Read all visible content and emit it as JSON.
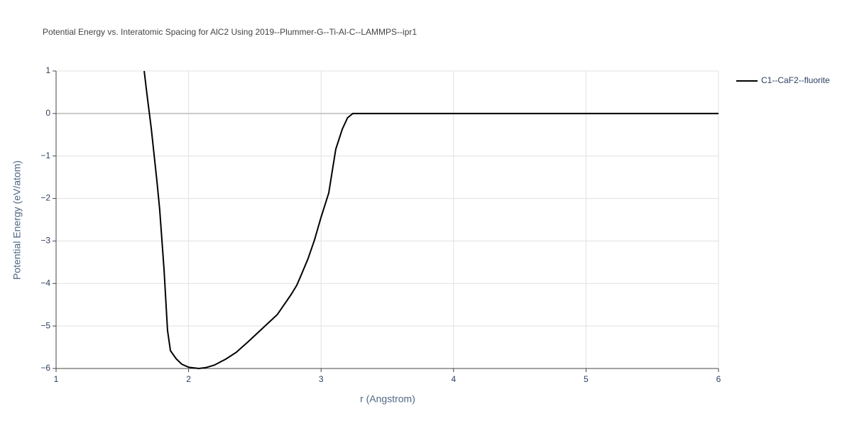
{
  "chart_data": {
    "type": "line",
    "title": "Potential Energy vs. Interatomic Spacing for AlC2 Using 2019--Plummer-G--Ti-Al-C--LAMMPS--ipr1",
    "x_label": "r (Angstrom)",
    "y_label": "Potential Energy (eV/atom)",
    "xlim": [
      1,
      6
    ],
    "ylim": [
      -6,
      1
    ],
    "xticks": [
      1,
      2,
      3,
      4,
      5,
      6
    ],
    "yticks": [
      {
        "value": -6,
        "label": "−6"
      },
      {
        "value": -5,
        "label": "−5"
      },
      {
        "value": -4,
        "label": "−4"
      },
      {
        "value": -3,
        "label": "−3"
      },
      {
        "value": -2,
        "label": "−2"
      },
      {
        "value": -1,
        "label": "−1"
      },
      0,
      1
    ],
    "grid": true,
    "zeroline": true,
    "legend": "right",
    "series": [
      {
        "name": "C1--CaF2--fluorite",
        "color": "#000000",
        "x": [
          1.665,
          1.686,
          1.718,
          1.761,
          1.782,
          1.815,
          1.841,
          1.863,
          1.906,
          1.949,
          2.0,
          2.077,
          2.13,
          2.195,
          2.28,
          2.36,
          2.45,
          2.56,
          2.67,
          2.774,
          2.817,
          2.85,
          2.9,
          2.95,
          3.0,
          3.058,
          3.111,
          3.16,
          3.2,
          3.24,
          6.0
        ],
        "values": [
          1.0,
          0.45,
          -0.34,
          -1.59,
          -2.26,
          -3.68,
          -5.1,
          -5.58,
          -5.77,
          -5.9,
          -5.97,
          -6.0,
          -5.98,
          -5.92,
          -5.78,
          -5.62,
          -5.37,
          -5.05,
          -4.73,
          -4.26,
          -4.04,
          -3.8,
          -3.43,
          -2.98,
          -2.44,
          -1.87,
          -0.84,
          -0.37,
          -0.1,
          0.0,
          0.0
        ]
      }
    ]
  }
}
